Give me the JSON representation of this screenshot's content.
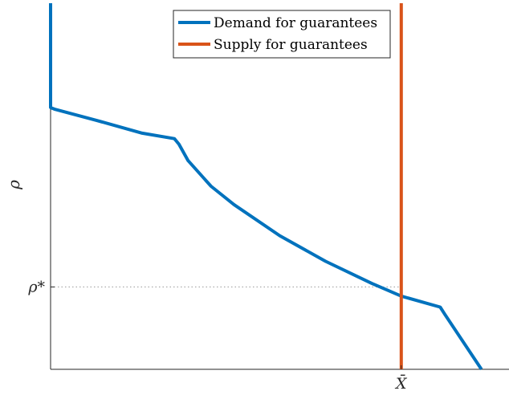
{
  "chart_data": {
    "type": "line",
    "xlabel": "",
    "ylabel": "ρ",
    "xlim": [
      0,
      1
    ],
    "ylim": [
      0,
      1
    ],
    "x_ticks": [
      {
        "value": 0.765,
        "label": "X̄"
      }
    ],
    "y_ticks": [
      {
        "value": 0.225,
        "label": "ρ*"
      }
    ],
    "grid": false,
    "legend_position": "top-center",
    "series": [
      {
        "name": "Demand for guarantees",
        "color": "#0072BD",
        "x": [
          0,
          0,
          0.01,
          0.1,
          0.2,
          0.27,
          0.28,
          0.3,
          0.35,
          0.4,
          0.5,
          0.6,
          0.7,
          0.765,
          0.85,
          0.86,
          0.94
        ],
        "y": [
          1,
          0.715,
          0.71,
          0.68,
          0.645,
          0.63,
          0.615,
          0.57,
          0.5,
          0.45,
          0.365,
          0.295,
          0.235,
          0.2,
          0.17,
          0.15,
          0
        ]
      },
      {
        "name": "Supply for guarantees",
        "color": "#D95319",
        "x": [
          0.765,
          0.765
        ],
        "y": [
          0,
          1
        ]
      }
    ],
    "reference_lines": [
      {
        "orientation": "horizontal",
        "y": 0.225,
        "x_end": 0.765,
        "style": "dotted",
        "color": "#999999"
      }
    ]
  }
}
